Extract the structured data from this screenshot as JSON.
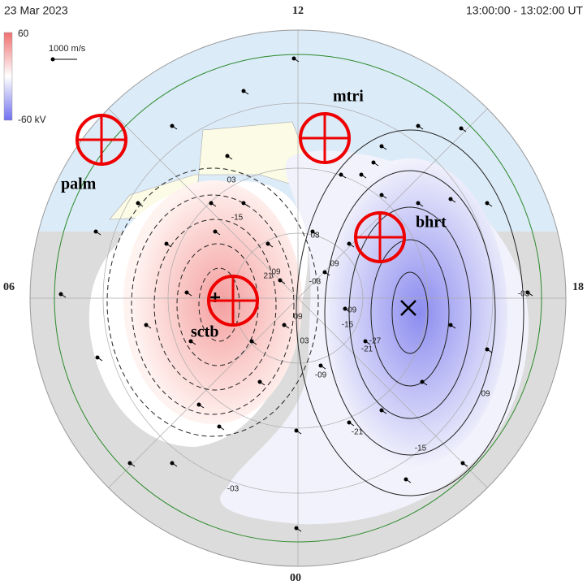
{
  "header": {
    "date": "23  Mar  2023",
    "time_range": "13:00:00  -  13:02:00  UT"
  },
  "clock_labels": {
    "top": "12",
    "left": "06",
    "right": "18",
    "bottom": "00"
  },
  "colorbar": {
    "max_label": "60",
    "min_label": "-60 kV"
  },
  "velocity_scale": "1000 m/s",
  "stations": [
    {
      "label": "palm"
    },
    {
      "label": "mtri"
    },
    {
      "label": "bhrt"
    },
    {
      "label": "sctb"
    }
  ],
  "contour_labels": [
    "03",
    "-15",
    "21",
    "09",
    "03",
    "03",
    "09",
    "-03",
    "09",
    "-09",
    "-15",
    "-21",
    "-27",
    "-09",
    "-15",
    "-21",
    "-03",
    "-03",
    "09"
  ]
}
